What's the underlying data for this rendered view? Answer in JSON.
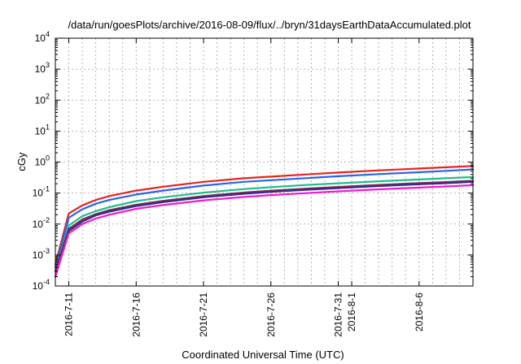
{
  "chart_data": {
    "type": "line",
    "title": "/data/run/goesPlots/archive/2016-08-09/flux/../bryn/31daysEarthDataAccumulated.plot",
    "xlabel": "Coordinated Universal Time (UTC)",
    "ylabel": "cGy",
    "yscale": "log",
    "ylim": [
      0.0001,
      10000
    ],
    "xlim": [
      "2016-07-10",
      "2016-08-10"
    ],
    "grid": true,
    "legend": "none",
    "x_ticks": [
      {
        "date": "2016-07-11",
        "label": "2016-7-11"
      },
      {
        "date": "2016-07-16",
        "label": "2016-7-16"
      },
      {
        "date": "2016-07-21",
        "label": "2016-7-21"
      },
      {
        "date": "2016-07-26",
        "label": "2016-7-26"
      },
      {
        "date": "2016-07-31",
        "label": "2016-7-31"
      },
      {
        "date": "2016-08-01",
        "label": "2016-8-1"
      },
      {
        "date": "2016-08-06",
        "label": "2016-8-6"
      }
    ],
    "y_ticks": [
      {
        "value": 0.0001,
        "base": "10",
        "exp": "-4"
      },
      {
        "value": 0.001,
        "base": "10",
        "exp": "-3"
      },
      {
        "value": 0.01,
        "base": "10",
        "exp": "-2"
      },
      {
        "value": 0.1,
        "base": "10",
        "exp": "-1"
      },
      {
        "value": 1,
        "base": "10",
        "exp": "0"
      },
      {
        "value": 10,
        "base": "10",
        "exp": "1"
      },
      {
        "value": 100,
        "base": "10",
        "exp": "2"
      },
      {
        "value": 1000,
        "base": "10",
        "exp": "3"
      },
      {
        "value": 10000,
        "base": "10",
        "exp": "4"
      }
    ],
    "x": [
      "2016-07-10",
      "2016-07-11",
      "2016-07-12",
      "2016-07-13",
      "2016-07-14",
      "2016-07-16",
      "2016-07-18",
      "2016-07-21",
      "2016-07-24",
      "2016-07-26",
      "2016-07-29",
      "2016-07-31",
      "2016-08-03",
      "2016-08-06",
      "2016-08-08",
      "2016-08-10"
    ],
    "series": [
      {
        "color": "#e8221b",
        "values": [
          0.0005,
          0.022,
          0.04,
          0.06,
          0.08,
          0.12,
          0.16,
          0.23,
          0.3,
          0.34,
          0.41,
          0.46,
          0.54,
          0.62,
          0.68,
          0.75
        ]
      },
      {
        "color": "#2a63e8",
        "values": [
          0.0004,
          0.016,
          0.03,
          0.045,
          0.06,
          0.09,
          0.12,
          0.175,
          0.23,
          0.26,
          0.31,
          0.35,
          0.41,
          0.47,
          0.52,
          0.58
        ]
      },
      {
        "color": "#1fbd8a",
        "values": [
          0.0003,
          0.009,
          0.018,
          0.026,
          0.035,
          0.055,
          0.073,
          0.103,
          0.135,
          0.155,
          0.186,
          0.207,
          0.24,
          0.275,
          0.3,
          0.33
        ]
      },
      {
        "color": "#7d2a4e",
        "values": [
          0.0003,
          0.007,
          0.014,
          0.021,
          0.028,
          0.042,
          0.056,
          0.08,
          0.104,
          0.119,
          0.142,
          0.158,
          0.183,
          0.209,
          0.227,
          0.25
        ]
      },
      {
        "color": "#2f2f8a",
        "values": [
          0.0002,
          0.006,
          0.012,
          0.019,
          0.025,
          0.038,
          0.051,
          0.073,
          0.095,
          0.109,
          0.13,
          0.145,
          0.168,
          0.192,
          0.208,
          0.23
        ]
      },
      {
        "color": "#f01cc8",
        "values": [
          0.0002,
          0.005,
          0.01,
          0.015,
          0.02,
          0.031,
          0.041,
          0.058,
          0.075,
          0.086,
          0.102,
          0.114,
          0.132,
          0.15,
          0.163,
          0.18
        ]
      }
    ]
  }
}
